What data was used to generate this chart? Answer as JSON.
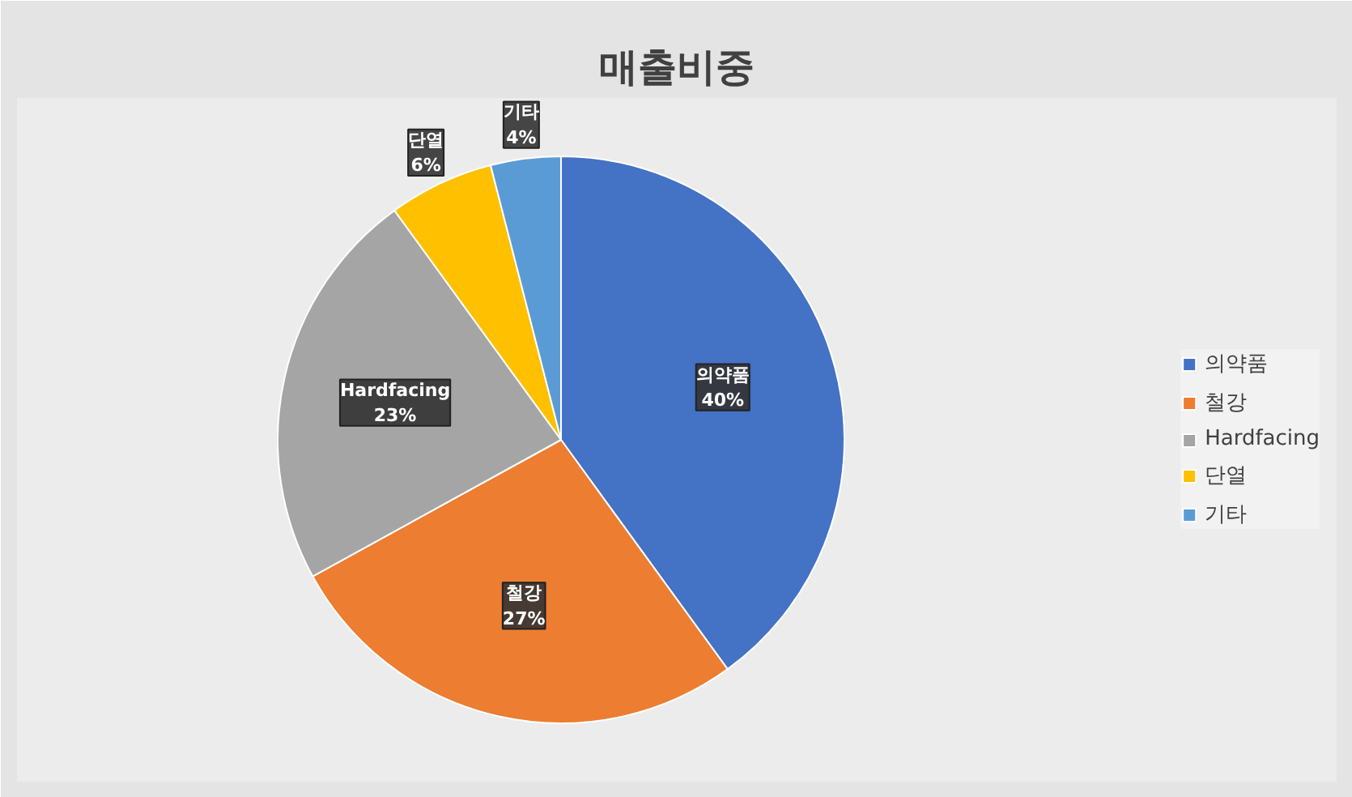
{
  "chart_data": {
    "type": "pie",
    "title": "매출비중",
    "categories": [
      "의약품",
      "철강",
      "Hardfacing",
      "단열",
      "기타"
    ],
    "values": [
      40,
      27,
      23,
      6,
      4
    ],
    "colors": [
      "#4472c4",
      "#ed7d31",
      "#a5a5a5",
      "#ffc000",
      "#5b9bd5"
    ],
    "value_labels": [
      "40%",
      "27%",
      "23%",
      "6%",
      "4%"
    ],
    "legend": "right"
  }
}
